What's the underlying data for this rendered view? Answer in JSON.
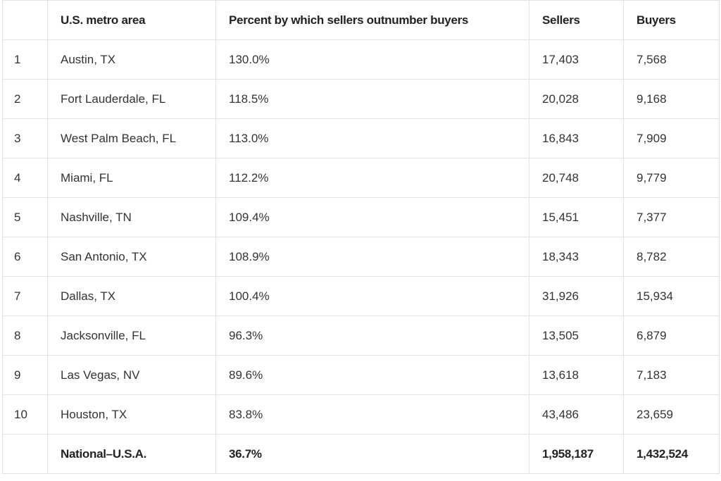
{
  "table": {
    "columns": [
      "U.S. metro area",
      "Percent by which sellers outnumber buyers",
      "Sellers",
      "Buyers"
    ],
    "rows": [
      {
        "rank": "1",
        "cells": [
          "Austin, TX",
          "130.0%",
          "17,403",
          "7,568"
        ]
      },
      {
        "rank": "2",
        "cells": [
          "Fort Lauderdale, FL",
          "118.5%",
          "20,028",
          "9,168"
        ]
      },
      {
        "rank": "3",
        "cells": [
          "West Palm Beach, FL",
          "113.0%",
          "16,843",
          "7,909"
        ]
      },
      {
        "rank": "4",
        "cells": [
          "Miami, FL",
          "112.2%",
          "20,748",
          "9,779"
        ]
      },
      {
        "rank": "5",
        "cells": [
          "Nashville, TN",
          "109.4%",
          "15,451",
          "7,377"
        ]
      },
      {
        "rank": "6",
        "cells": [
          "San Antonio, TX",
          "108.9%",
          "18,343",
          "8,782"
        ]
      },
      {
        "rank": "7",
        "cells": [
          "Dallas, TX",
          "100.4%",
          "31,926",
          "15,934"
        ]
      },
      {
        "rank": "8",
        "cells": [
          "Jacksonville, FL",
          "96.3%",
          "13,505",
          "6,879"
        ]
      },
      {
        "rank": "9",
        "cells": [
          "Las Vegas, NV",
          "89.6%",
          "13,618",
          "7,183"
        ]
      },
      {
        "rank": "10",
        "cells": [
          "Houston, TX",
          "83.8%",
          "43,486",
          "23,659"
        ]
      }
    ],
    "total": {
      "cells": [
        "National–U.S.A.",
        "36.7%",
        "1,958,187",
        "1,432,524"
      ]
    }
  }
}
